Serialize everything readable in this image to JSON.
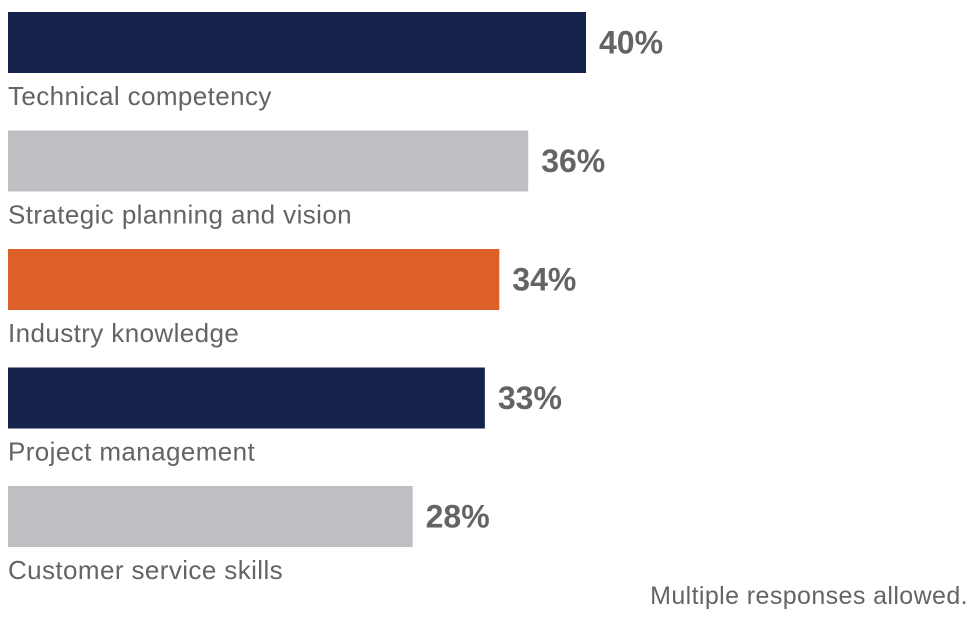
{
  "chart_data": {
    "type": "bar",
    "orientation": "horizontal",
    "categories": [
      "Technical competency",
      "Strategic planning and vision",
      "Industry knowledge",
      "Project management",
      "Customer service skills"
    ],
    "values": [
      40,
      36,
      34,
      33,
      28
    ],
    "value_labels": [
      "40%",
      "36%",
      "34%",
      "33%",
      "28%"
    ],
    "unit": "%",
    "bar_colors": [
      "#15224b",
      "#bebfc2",
      "#dc6027",
      "#15224b",
      "#bebfc2"
    ],
    "xlim": [
      0,
      40
    ],
    "grid": false
  },
  "footnote": "Multiple responses allowed."
}
